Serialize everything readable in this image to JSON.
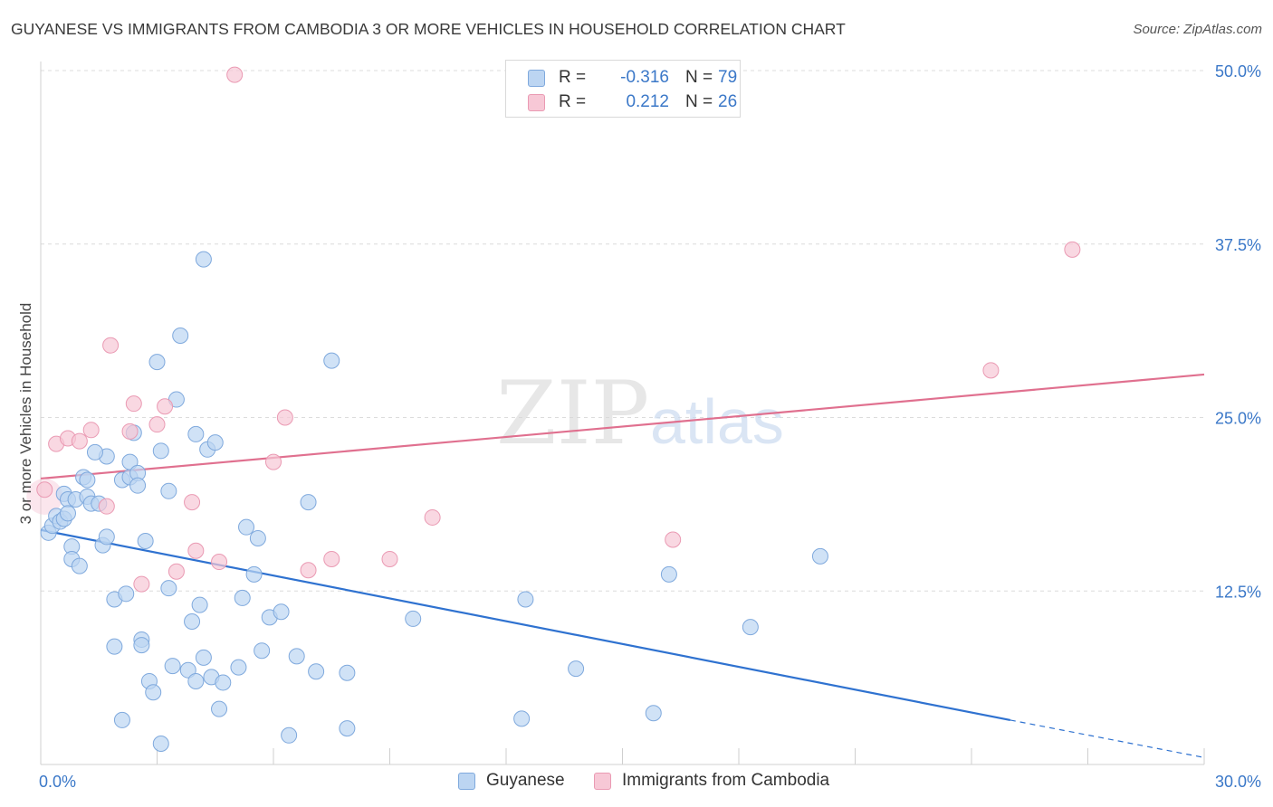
{
  "title": "GUYANESE VS IMMIGRANTS FROM CAMBODIA 3 OR MORE VEHICLES IN HOUSEHOLD CORRELATION CHART",
  "source": "Source: ZipAtlas.com",
  "watermark": {
    "zip": "ZIP",
    "atlas": "atlas"
  },
  "legend_top": {
    "rows": [
      {
        "r_label": "R =",
        "r_value": "-0.316",
        "n_label": "N =",
        "n_value": "79"
      },
      {
        "r_label": "R =",
        "r_value": "0.212",
        "n_label": "N =",
        "n_value": "26"
      }
    ]
  },
  "legend_bottom": [
    "Guyanese",
    "Immigrants from Cambodia"
  ],
  "colors": {
    "blue_fill": "#bcd5f2",
    "blue_stroke": "#7fa9dd",
    "blue_line": "#2f72d0",
    "pink_fill": "#f7c8d6",
    "pink_stroke": "#ea9ab3",
    "pink_line": "#e0708f",
    "grid": "#dcdcdc",
    "tick_text": "#3b78c8"
  },
  "chart_data": {
    "type": "scatter",
    "title": "GUYANESE VS IMMIGRANTS FROM CAMBODIA 3 OR MORE VEHICLES IN HOUSEHOLD CORRELATION CHART",
    "xlabel": "",
    "ylabel": "3 or more Vehicles in Household",
    "xlim": [
      0,
      30
    ],
    "ylim": [
      0,
      50
    ],
    "x_tick_labels": [
      "0.0%",
      "30.0%"
    ],
    "y_ticks": [
      12.5,
      25.0,
      37.5,
      50.0
    ],
    "y_tick_labels": [
      "12.5%",
      "25.0%",
      "37.5%",
      "50.0%"
    ],
    "grid": true,
    "legend_position": "top-center",
    "series": [
      {
        "name": "Guyanese",
        "color": "#bcd5f2",
        "r": -0.316,
        "n": 79,
        "trend": {
          "x": [
            0,
            25.0
          ],
          "y": [
            16.9,
            3.2
          ],
          "dashed_to": [
            30.0,
            0.5
          ]
        },
        "points": [
          [
            0.2,
            16.7
          ],
          [
            0.3,
            17.2
          ],
          [
            0.4,
            17.9
          ],
          [
            0.5,
            17.5
          ],
          [
            0.6,
            19.5
          ],
          [
            0.6,
            17.7
          ],
          [
            0.7,
            19.1
          ],
          [
            0.7,
            18.1
          ],
          [
            0.8,
            15.7
          ],
          [
            0.8,
            14.8
          ],
          [
            0.9,
            19.1
          ],
          [
            1.0,
            14.3
          ],
          [
            1.1,
            20.7
          ],
          [
            1.2,
            19.3
          ],
          [
            1.2,
            20.5
          ],
          [
            1.3,
            18.8
          ],
          [
            1.5,
            18.8
          ],
          [
            1.6,
            15.8
          ],
          [
            1.7,
            22.2
          ],
          [
            1.7,
            16.4
          ],
          [
            1.9,
            11.9
          ],
          [
            1.9,
            8.5
          ],
          [
            2.1,
            3.2
          ],
          [
            2.1,
            20.5
          ],
          [
            2.2,
            12.3
          ],
          [
            2.3,
            20.7
          ],
          [
            2.3,
            21.8
          ],
          [
            2.4,
            23.9
          ],
          [
            2.5,
            21.0
          ],
          [
            2.5,
            20.1
          ],
          [
            2.6,
            9.0
          ],
          [
            2.6,
            8.6
          ],
          [
            2.7,
            16.1
          ],
          [
            2.8,
            6.0
          ],
          [
            2.9,
            5.2
          ],
          [
            3.0,
            29.0
          ],
          [
            3.1,
            1.5
          ],
          [
            3.1,
            22.6
          ],
          [
            3.3,
            19.7
          ],
          [
            3.3,
            12.7
          ],
          [
            3.4,
            7.1
          ],
          [
            3.5,
            26.3
          ],
          [
            3.6,
            30.9
          ],
          [
            3.8,
            6.8
          ],
          [
            3.9,
            10.3
          ],
          [
            4.0,
            6.0
          ],
          [
            4.0,
            23.8
          ],
          [
            4.2,
            36.4
          ],
          [
            4.2,
            7.7
          ],
          [
            4.3,
            22.7
          ],
          [
            4.4,
            6.3
          ],
          [
            4.5,
            23.2
          ],
          [
            4.6,
            4.0
          ],
          [
            4.7,
            5.9
          ],
          [
            5.1,
            7.0
          ],
          [
            5.2,
            12.0
          ],
          [
            5.3,
            17.1
          ],
          [
            5.5,
            13.7
          ],
          [
            5.6,
            16.3
          ],
          [
            5.7,
            8.2
          ],
          [
            5.9,
            10.6
          ],
          [
            6.2,
            11.0
          ],
          [
            6.4,
            2.1
          ],
          [
            6.6,
            7.8
          ],
          [
            6.9,
            18.9
          ],
          [
            7.1,
            6.7
          ],
          [
            7.5,
            29.1
          ],
          [
            7.9,
            6.6
          ],
          [
            7.9,
            2.6
          ],
          [
            9.6,
            10.5
          ],
          [
            12.4,
            3.3
          ],
          [
            12.5,
            11.9
          ],
          [
            13.8,
            6.9
          ],
          [
            15.8,
            3.7
          ],
          [
            16.2,
            13.7
          ],
          [
            18.3,
            9.9
          ],
          [
            20.1,
            15.0
          ],
          [
            4.1,
            11.5
          ],
          [
            1.4,
            22.5
          ]
        ]
      },
      {
        "name": "Immigrants from Cambodia",
        "color": "#f7c8d6",
        "r": 0.212,
        "n": 26,
        "trend": {
          "x": [
            0,
            30.0
          ],
          "y": [
            20.6,
            28.1
          ]
        },
        "points": [
          [
            0.1,
            19.8
          ],
          [
            0.4,
            23.1
          ],
          [
            0.7,
            23.5
          ],
          [
            1.0,
            23.3
          ],
          [
            1.3,
            24.1
          ],
          [
            1.7,
            18.6
          ],
          [
            1.8,
            30.2
          ],
          [
            2.3,
            24.0
          ],
          [
            2.4,
            26.0
          ],
          [
            2.6,
            13.0
          ],
          [
            3.0,
            24.5
          ],
          [
            3.2,
            25.8
          ],
          [
            3.5,
            13.9
          ],
          [
            3.9,
            18.9
          ],
          [
            4.0,
            15.4
          ],
          [
            4.6,
            14.6
          ],
          [
            5.0,
            49.7
          ],
          [
            6.0,
            21.8
          ],
          [
            6.3,
            25.0
          ],
          [
            6.9,
            14.0
          ],
          [
            7.5,
            14.8
          ],
          [
            9.0,
            14.8
          ],
          [
            10.1,
            17.8
          ],
          [
            16.3,
            16.2
          ],
          [
            24.5,
            28.4
          ],
          [
            26.6,
            37.1
          ]
        ]
      }
    ]
  }
}
